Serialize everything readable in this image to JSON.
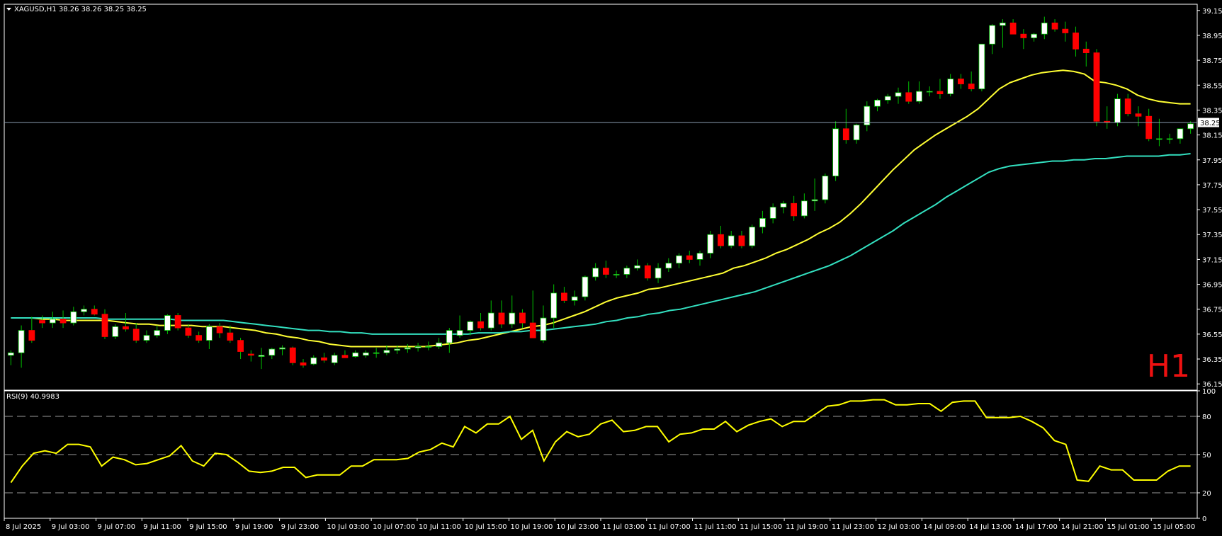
{
  "window": {
    "symbol_header": "XAGUSD,H1  38.26 38.26 38.25 38.25",
    "timeframe_watermark": "H1",
    "current_price_label": "38.25"
  },
  "colors": {
    "background": "#000000",
    "frame": "#ffffff",
    "bull_candle": "#ffffff",
    "bear_candle": "#ff0000",
    "wick": "#00c000",
    "ma_fast": "#ffff33",
    "ma_slow": "#33e0c0",
    "rsi_line": "#ffff00",
    "watermark": "#ee1111"
  },
  "chart_data": [
    {
      "type": "candlestick",
      "symbol": "XAGUSD",
      "timeframe": "H1",
      "ylim": [
        36.1,
        39.2
      ],
      "y_ticks": [
        "39.15",
        "38.95",
        "38.75",
        "38.55",
        "38.35",
        "38.15",
        "37.95",
        "37.75",
        "37.55",
        "37.35",
        "37.15",
        "36.95",
        "36.75",
        "36.55",
        "36.35",
        "36.15"
      ],
      "x_ticks": [
        "8 Jul 2025",
        "9 Jul 03:00",
        "9 Jul 07:00",
        "9 Jul 11:00",
        "9 Jul 15:00",
        "9 Jul 19:00",
        "9 Jul 23:00",
        "10 Jul 03:00",
        "10 Jul 07:00",
        "10 Jul 11:00",
        "10 Jul 15:00",
        "10 Jul 19:00",
        "10 Jul 23:00",
        "11 Jul 03:00",
        "11 Jul 07:00",
        "11 Jul 11:00",
        "11 Jul 15:00",
        "11 Jul 19:00",
        "11 Jul 23:00",
        "12 Jul 03:00",
        "14 Jul 09:00",
        "14 Jul 13:00",
        "14 Jul 17:00",
        "14 Jul 21:00",
        "15 Jul 01:00",
        "15 Jul 05:00"
      ],
      "last_price": 38.25,
      "ohlc": [
        [
          36.38,
          36.42,
          36.3,
          36.4
        ],
        [
          36.4,
          36.62,
          36.28,
          36.58
        ],
        [
          36.58,
          36.69,
          36.48,
          36.5
        ],
        [
          36.66,
          36.7,
          36.6,
          36.64
        ],
        [
          36.64,
          36.73,
          36.6,
          36.67
        ],
        [
          36.67,
          36.74,
          36.6,
          36.64
        ],
        [
          36.64,
          36.77,
          36.62,
          36.73
        ],
        [
          36.73,
          36.78,
          36.7,
          36.75
        ],
        [
          36.75,
          36.78,
          36.7,
          36.71
        ],
        [
          36.71,
          36.75,
          36.51,
          36.53
        ],
        [
          36.53,
          36.63,
          36.51,
          36.61
        ],
        [
          36.61,
          36.72,
          36.57,
          36.59
        ],
        [
          36.59,
          36.64,
          36.48,
          36.5
        ],
        [
          36.5,
          36.58,
          36.48,
          36.54
        ],
        [
          36.54,
          36.62,
          36.52,
          36.58
        ],
        [
          36.58,
          36.71,
          36.55,
          36.7
        ],
        [
          36.7,
          36.72,
          36.58,
          36.6
        ],
        [
          36.6,
          36.63,
          36.52,
          36.54
        ],
        [
          36.54,
          36.57,
          36.48,
          36.5
        ],
        [
          36.5,
          36.63,
          36.43,
          36.61
        ],
        [
          36.61,
          36.64,
          36.52,
          36.56
        ],
        [
          36.56,
          36.62,
          36.48,
          36.5
        ],
        [
          36.5,
          36.52,
          36.35,
          36.41
        ],
        [
          36.39,
          36.42,
          36.33,
          36.38
        ],
        [
          36.37,
          36.44,
          36.27,
          36.38
        ],
        [
          36.38,
          36.44,
          36.35,
          36.43
        ],
        [
          36.43,
          36.46,
          36.38,
          36.44
        ],
        [
          36.44,
          36.45,
          36.3,
          36.32
        ],
        [
          36.32,
          36.35,
          36.28,
          36.3
        ],
        [
          36.31,
          36.38,
          36.3,
          36.36
        ],
        [
          36.36,
          36.4,
          36.32,
          36.34
        ],
        [
          36.32,
          36.4,
          36.3,
          36.38
        ],
        [
          36.38,
          36.42,
          36.36,
          36.36
        ],
        [
          36.37,
          36.42,
          36.36,
          36.4
        ],
        [
          36.38,
          36.42,
          36.36,
          36.4
        ],
        [
          36.4,
          36.44,
          36.36,
          36.4
        ],
        [
          36.4,
          36.46,
          36.38,
          36.42
        ],
        [
          36.42,
          36.46,
          36.39,
          36.43
        ],
        [
          36.43,
          36.47,
          36.4,
          36.44
        ],
        [
          36.44,
          36.48,
          36.41,
          36.45
        ],
        [
          36.45,
          36.49,
          36.42,
          36.45
        ],
        [
          36.45,
          36.52,
          36.43,
          36.48
        ],
        [
          36.48,
          36.6,
          36.4,
          36.58
        ],
        [
          36.54,
          36.7,
          36.52,
          36.58
        ],
        [
          36.58,
          36.66,
          36.54,
          36.65
        ],
        [
          36.65,
          36.72,
          36.58,
          36.6
        ],
        [
          36.6,
          36.82,
          36.58,
          36.72
        ],
        [
          36.72,
          36.82,
          36.6,
          36.63
        ],
        [
          36.63,
          36.86,
          36.6,
          36.72
        ],
        [
          36.72,
          36.75,
          36.6,
          36.64
        ],
        [
          36.64,
          36.9,
          36.52,
          36.52
        ],
        [
          36.5,
          36.78,
          36.48,
          36.68
        ],
        [
          36.68,
          36.95,
          36.6,
          36.88
        ],
        [
          36.88,
          36.93,
          36.8,
          36.82
        ],
        [
          36.82,
          36.9,
          36.78,
          36.85
        ],
        [
          36.85,
          37.02,
          36.82,
          37.01
        ],
        [
          37.01,
          37.12,
          36.98,
          37.08
        ],
        [
          37.08,
          37.14,
          37.0,
          37.03
        ],
        [
          37.03,
          37.06,
          37.0,
          37.03
        ],
        [
          37.03,
          37.1,
          37.0,
          37.08
        ],
        [
          37.08,
          37.15,
          37.06,
          37.1
        ],
        [
          37.1,
          37.12,
          36.98,
          37.0
        ],
        [
          37.0,
          37.12,
          36.96,
          37.08
        ],
        [
          37.08,
          37.16,
          37.05,
          37.12
        ],
        [
          37.12,
          37.2,
          37.08,
          37.18
        ],
        [
          37.18,
          37.22,
          37.12,
          37.15
        ],
        [
          37.15,
          37.22,
          37.1,
          37.2
        ],
        [
          37.2,
          37.38,
          37.16,
          37.35
        ],
        [
          37.35,
          37.42,
          37.24,
          37.26
        ],
        [
          37.26,
          37.38,
          37.24,
          37.34
        ],
        [
          37.34,
          37.38,
          37.24,
          37.26
        ],
        [
          37.26,
          37.43,
          37.24,
          37.41
        ],
        [
          37.41,
          37.54,
          37.36,
          37.48
        ],
        [
          37.48,
          37.6,
          37.44,
          37.57
        ],
        [
          37.57,
          37.62,
          37.52,
          37.6
        ],
        [
          37.6,
          37.66,
          37.46,
          37.5
        ],
        [
          37.5,
          37.68,
          37.48,
          37.62
        ],
        [
          37.62,
          37.8,
          37.54,
          37.63
        ],
        [
          37.63,
          37.84,
          37.6,
          37.82
        ],
        [
          37.82,
          38.26,
          37.78,
          38.2
        ],
        [
          38.2,
          38.36,
          38.08,
          38.11
        ],
        [
          38.11,
          38.24,
          38.08,
          38.23
        ],
        [
          38.23,
          38.42,
          38.18,
          38.38
        ],
        [
          38.38,
          38.44,
          38.34,
          38.43
        ],
        [
          38.43,
          38.48,
          38.4,
          38.46
        ],
        [
          38.46,
          38.53,
          38.4,
          38.49
        ],
        [
          38.49,
          38.58,
          38.4,
          38.42
        ],
        [
          38.42,
          38.58,
          38.4,
          38.5
        ],
        [
          38.5,
          38.54,
          38.46,
          38.5
        ],
        [
          38.5,
          38.6,
          38.44,
          38.48
        ],
        [
          38.48,
          38.64,
          38.46,
          38.6
        ],
        [
          38.6,
          38.64,
          38.52,
          38.56
        ],
        [
          38.56,
          38.66,
          38.5,
          38.52
        ],
        [
          38.52,
          38.88,
          38.5,
          38.88
        ],
        [
          38.88,
          39.04,
          38.8,
          39.03
        ],
        [
          39.03,
          39.08,
          38.85,
          39.05
        ],
        [
          39.05,
          39.08,
          38.98,
          38.96
        ],
        [
          38.96,
          39.0,
          38.84,
          38.93
        ],
        [
          38.93,
          38.97,
          38.9,
          38.96
        ],
        [
          38.96,
          39.1,
          38.92,
          39.05
        ],
        [
          39.05,
          39.08,
          38.98,
          39.0
        ],
        [
          39.0,
          39.06,
          38.9,
          38.97
        ],
        [
          38.97,
          39.02,
          38.78,
          38.84
        ],
        [
          38.84,
          38.9,
          38.7,
          38.81
        ],
        [
          38.81,
          38.84,
          38.22,
          38.26
        ],
        [
          38.26,
          38.38,
          38.2,
          38.25
        ],
        [
          38.25,
          38.48,
          38.22,
          38.44
        ],
        [
          38.44,
          38.48,
          38.3,
          38.32
        ],
        [
          38.32,
          38.38,
          38.22,
          38.3
        ],
        [
          38.3,
          38.36,
          38.1,
          38.12
        ],
        [
          38.12,
          38.28,
          38.06,
          38.12
        ],
        [
          38.12,
          38.16,
          38.08,
          38.12
        ],
        [
          38.12,
          38.2,
          38.08,
          38.2
        ],
        [
          38.2,
          38.26,
          38.16,
          38.24
        ]
      ],
      "series": [
        {
          "name": "MA fast",
          "values": [
            36.68,
            36.68,
            36.68,
            36.67,
            36.67,
            36.66,
            36.66,
            36.66,
            36.66,
            36.66,
            36.65,
            36.64,
            36.63,
            36.63,
            36.62,
            36.62,
            36.62,
            36.62,
            36.61,
            36.61,
            36.61,
            36.6,
            36.59,
            36.58,
            36.56,
            36.55,
            36.53,
            36.52,
            36.5,
            36.49,
            36.47,
            36.46,
            36.45,
            36.45,
            36.45,
            36.45,
            36.45,
            36.45,
            36.45,
            36.45,
            36.46,
            36.47,
            36.48,
            36.5,
            36.51,
            36.53,
            36.55,
            36.57,
            36.59,
            36.61,
            36.62,
            36.64,
            36.67,
            36.7,
            36.73,
            36.77,
            36.81,
            36.84,
            36.86,
            36.88,
            36.91,
            36.92,
            36.94,
            36.96,
            36.98,
            37.0,
            37.02,
            37.04,
            37.08,
            37.1,
            37.13,
            37.16,
            37.2,
            37.23,
            37.27,
            37.31,
            37.36,
            37.4,
            37.45,
            37.52,
            37.6,
            37.69,
            37.78,
            37.87,
            37.95,
            38.03,
            38.09,
            38.15,
            38.2,
            38.25,
            38.3,
            38.36,
            38.44,
            38.52,
            38.57,
            38.6,
            38.63,
            38.65,
            38.66,
            38.67,
            38.66,
            38.64,
            38.58,
            38.57,
            38.55,
            38.52,
            38.47,
            38.44,
            38.42,
            38.41,
            38.4,
            38.4
          ]
        },
        {
          "name": "MA slow",
          "values": [
            36.68,
            36.68,
            36.68,
            36.68,
            36.68,
            36.68,
            36.68,
            36.68,
            36.68,
            36.67,
            36.67,
            36.67,
            36.67,
            36.67,
            36.67,
            36.67,
            36.66,
            36.66,
            36.66,
            36.66,
            36.66,
            36.65,
            36.64,
            36.63,
            36.62,
            36.61,
            36.6,
            36.59,
            36.58,
            36.58,
            36.57,
            36.57,
            36.56,
            36.56,
            36.55,
            36.55,
            36.55,
            36.55,
            36.55,
            36.55,
            36.55,
            36.55,
            36.55,
            36.55,
            36.56,
            36.56,
            36.56,
            36.57,
            36.57,
            36.58,
            36.58,
            36.59,
            36.6,
            36.61,
            36.62,
            36.63,
            36.65,
            36.66,
            36.68,
            36.69,
            36.71,
            36.72,
            36.74,
            36.75,
            36.77,
            36.79,
            36.81,
            36.83,
            36.85,
            36.87,
            36.89,
            36.92,
            36.95,
            36.98,
            37.01,
            37.04,
            37.07,
            37.1,
            37.14,
            37.18,
            37.23,
            37.28,
            37.33,
            37.38,
            37.44,
            37.49,
            37.54,
            37.59,
            37.65,
            37.7,
            37.75,
            37.8,
            37.85,
            37.88,
            37.9,
            37.91,
            37.92,
            37.93,
            37.94,
            37.94,
            37.95,
            37.95,
            37.96,
            37.96,
            37.97,
            37.98,
            37.98,
            37.98,
            37.98,
            37.99,
            37.99,
            38.0
          ]
        }
      ]
    },
    {
      "type": "line",
      "title": "RSI(9) 40.9983",
      "ylim": [
        0,
        100
      ],
      "y_ticks": [
        "100",
        "80",
        "50",
        "20",
        "0"
      ],
      "levels": [
        20,
        50,
        80
      ],
      "series": [
        {
          "name": "RSI(9)",
          "values": [
            28,
            41,
            51,
            53,
            51,
            58,
            58,
            56,
            41,
            48,
            46,
            42,
            43,
            46,
            49,
            57,
            45,
            41,
            51,
            50,
            44,
            37,
            36,
            37,
            40,
            40,
            32,
            34,
            34,
            34,
            41,
            41,
            46,
            46,
            46,
            47,
            52,
            54,
            59,
            56,
            72,
            67,
            74,
            74,
            80,
            62,
            69,
            45,
            60,
            68,
            64,
            66,
            74,
            77,
            68,
            69,
            72,
            72,
            60,
            66,
            67,
            70,
            70,
            76,
            68,
            73,
            76,
            78,
            72,
            76,
            76,
            82,
            88,
            89,
            92,
            92,
            93,
            93,
            89,
            89,
            90,
            90,
            84,
            91,
            92,
            92,
            79,
            79,
            79,
            80,
            76,
            71,
            61,
            58,
            30,
            29,
            41,
            38,
            38,
            30,
            30,
            30,
            37,
            41,
            41
          ]
        }
      ]
    }
  ]
}
